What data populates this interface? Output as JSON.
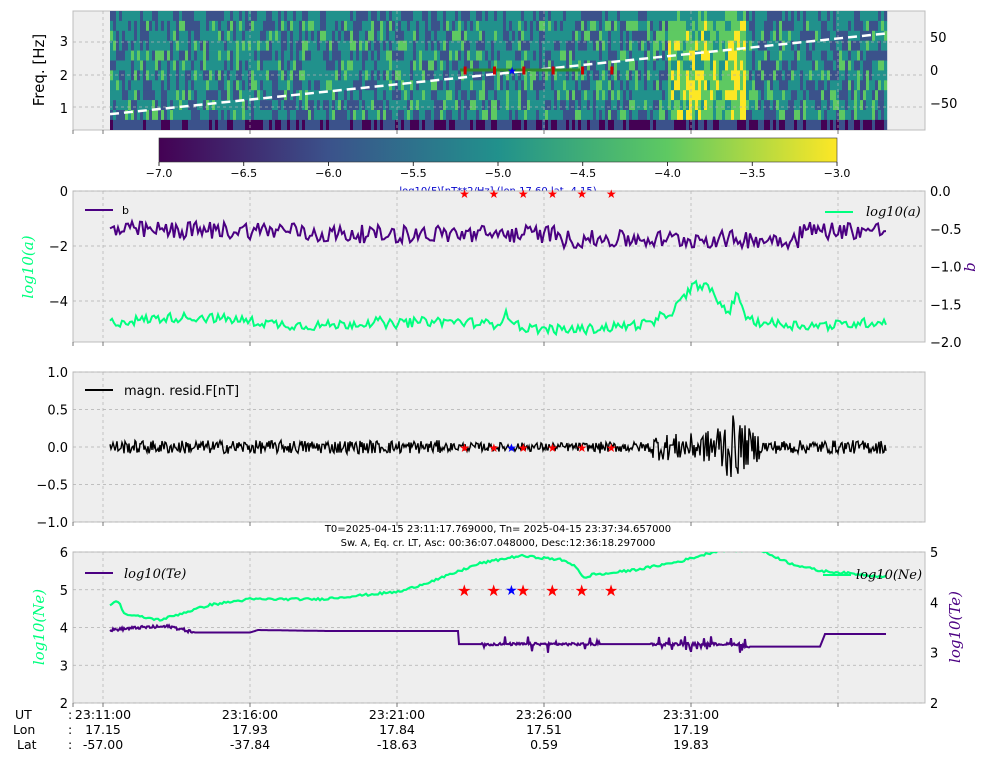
{
  "chart_data": [
    {
      "type": "heatmap",
      "ylabel": "Freq. [Hz]",
      "yticks": [
        "1",
        "2",
        "3"
      ],
      "ylim": [
        0.3,
        3.9
      ],
      "y2ticks": [
        "50",
        "0",
        "−50"
      ],
      "y2lim": [
        -90,
        90
      ],
      "colorbar": {
        "ticks": [
          "−7.0",
          "−6.5",
          "−6.0",
          "−5.5",
          "−5.0",
          "−4.5",
          "−4.0",
          "−3.5",
          "−3.0"
        ],
        "range": [
          -7.0,
          -3.0
        ],
        "label": "log10(F)[nT**2/Hz] (lon 17.60 lat -4.15)",
        "colors": [
          "#440154",
          "#3b528b",
          "#21918c",
          "#5ec962",
          "#fde725"
        ]
      },
      "trend_line": {
        "color": "#ffffff",
        "style": "dashed",
        "y2_start": -66,
        "y2_end": 56
      },
      "event_markers_y2": 0
    },
    {
      "type": "line",
      "ylabel_left": "log10(a)",
      "ylabel_right": "b",
      "yticks_left": [
        "0",
        "−2",
        "−4"
      ],
      "ylim_left": [
        -5.5,
        0
      ],
      "yticks_right": [
        "0.0",
        "−0.5",
        "−1.0",
        "−1.5",
        "−2.0"
      ],
      "ylim_right": [
        -2.0,
        0
      ],
      "series": [
        {
          "name": "b",
          "axis": "right",
          "color": "#4b0082",
          "base": -0.52,
          "noise": 0.12
        },
        {
          "name": "log10(a)",
          "axis": "left",
          "color": "#00ff7f",
          "base": -4.75,
          "noise": 0.18
        }
      ]
    },
    {
      "type": "line",
      "ylim": [
        -1.0,
        1.0
      ],
      "yticks": [
        "1.0",
        "0.5",
        "0.0",
        "−0.5",
        "−1.0"
      ],
      "series": [
        {
          "name": "magn. resid.F[nT]",
          "color": "#000000",
          "base": 0.0
        }
      ]
    },
    {
      "type": "line",
      "title": "T0=2025-04-15 23:11:17.769000, Tn= 2025-04-15 23:37:34.657000",
      "subtitle": "Sw. A, Eq. cr. LT, Asc: 00:36:07.048000, Desc:12:36:18.297000",
      "ylabel_left": "log10(Ne)",
      "ylabel_right": "log10(Te)",
      "yticks_left": [
        "6",
        "5",
        "4",
        "3",
        "2"
      ],
      "ylim_left": [
        2,
        6
      ],
      "yticks_right": [
        "5",
        "4",
        "3",
        "2"
      ],
      "ylim_right": [
        2,
        5
      ],
      "series": [
        {
          "name": "log10(Te)",
          "axis": "right",
          "color": "#4b0082"
        },
        {
          "name": "log10(Ne)",
          "axis": "left",
          "color": "#00ff7f"
        }
      ],
      "xticks_UT": [
        "23:11:00",
        "23:16:00",
        "23:21:00",
        "23:26:00",
        "23:31:00"
      ],
      "event_star_time_min": [
        12.1,
        13.1,
        14.1,
        15.1,
        16.1,
        17.1
      ],
      "blue_star_time_min": 13.7,
      "red_star_y": 5.0
    }
  ],
  "footer": {
    "labels": [
      "UT",
      "Lon",
      "Lat"
    ],
    "ut": [
      "23:11:00",
      "23:16:00",
      "23:21:00",
      "23:26:00",
      "23:31:00"
    ],
    "lon": [
      "17.15",
      "17.93",
      "17.84",
      "17.51",
      "17.19"
    ],
    "lat": [
      "-57.00",
      "-37.84",
      "-18.63",
      "0.59",
      "19.83"
    ]
  }
}
